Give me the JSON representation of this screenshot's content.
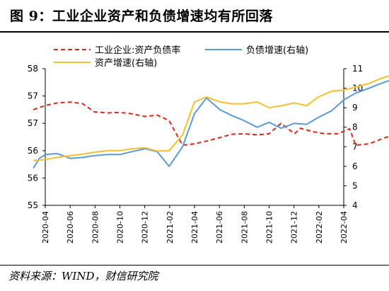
{
  "header": {
    "title": "图 9：工业企业资产和负债增速均有所回落"
  },
  "footer": {
    "source": "资料来源：WIND，财信研究院"
  },
  "chart_data": {
    "type": "line",
    "title": "图 9：工业企业资产和负债增速均有所回落",
    "x_ticks": [
      "2020-04",
      "2020-06",
      "2020-08",
      "2020-10",
      "2020-12",
      "2021-02",
      "2021-04",
      "2021-06",
      "2021-08",
      "2021-10",
      "2021-12",
      "2022-02",
      "2022-04"
    ],
    "x_start": 2020.25,
    "x_end": 2022.25,
    "y_left": {
      "ticks": [
        "55",
        "56",
        "56",
        "57",
        "57",
        "58"
      ],
      "range": [
        0,
        5
      ]
    },
    "y_right": {
      "ticks": [
        4,
        5,
        6,
        7,
        8,
        9,
        10,
        11
      ],
      "range": [
        4,
        11
      ]
    },
    "legend": {
      "placement": "top",
      "entries": [
        "工业企业:资产负债率",
        "负债增速(右轴)",
        "资产增速(右轴)"
      ]
    },
    "series": [
      {
        "name": "工业企业:资产负债率",
        "axis": "left",
        "color": "#e0261c",
        "dash": true,
        "points": [
          [
            2020.17,
            3.5
          ],
          [
            2020.25,
            3.65
          ],
          [
            2020.33,
            3.75
          ],
          [
            2020.42,
            3.78
          ],
          [
            2020.5,
            3.72
          ],
          [
            2020.58,
            3.42
          ],
          [
            2020.67,
            3.38
          ],
          [
            2020.75,
            3.4
          ],
          [
            2020.83,
            3.35
          ],
          [
            2020.92,
            3.25
          ],
          [
            2021.0,
            3.3
          ],
          [
            2021.08,
            3.1
          ],
          [
            2021.17,
            2.2
          ],
          [
            2021.25,
            2.25
          ],
          [
            2021.33,
            2.35
          ],
          [
            2021.42,
            2.48
          ],
          [
            2021.5,
            2.6
          ],
          [
            2021.58,
            2.62
          ],
          [
            2021.67,
            2.58
          ],
          [
            2021.75,
            2.62
          ],
          [
            2021.83,
            3.0
          ],
          [
            2021.92,
            2.62
          ],
          [
            2021.96,
            2.82
          ],
          [
            2022.04,
            2.7
          ],
          [
            2022.12,
            2.62
          ],
          [
            2022.21,
            2.62
          ],
          [
            2022.29,
            2.8
          ],
          [
            2022.33,
            2.2
          ],
          [
            2022.42,
            2.25
          ],
          [
            2022.5,
            2.42
          ],
          [
            2022.58,
            2.58
          ],
          [
            2022.67,
            3.02
          ],
          [
            2022.75,
            2.98
          ]
        ]
      },
      {
        "name": "负债增速(右轴)",
        "axis": "right",
        "color": "#5b9bd5",
        "dash": false,
        "points": [
          [
            2020.17,
            5.9
          ],
          [
            2020.21,
            6.4
          ],
          [
            2020.25,
            6.6
          ],
          [
            2020.33,
            6.65
          ],
          [
            2020.42,
            6.4
          ],
          [
            2020.5,
            6.45
          ],
          [
            2020.58,
            6.55
          ],
          [
            2020.67,
            6.6
          ],
          [
            2020.75,
            6.6
          ],
          [
            2020.83,
            6.75
          ],
          [
            2020.92,
            6.9
          ],
          [
            2021.0,
            6.75
          ],
          [
            2021.08,
            6.0
          ],
          [
            2021.17,
            7.0
          ],
          [
            2021.25,
            8.7
          ],
          [
            2021.33,
            9.5
          ],
          [
            2021.42,
            8.9
          ],
          [
            2021.5,
            8.6
          ],
          [
            2021.58,
            8.35
          ],
          [
            2021.67,
            8.0
          ],
          [
            2021.75,
            8.25
          ],
          [
            2021.83,
            7.95
          ],
          [
            2021.92,
            8.2
          ],
          [
            2022.0,
            8.15
          ],
          [
            2022.08,
            8.5
          ],
          [
            2022.17,
            8.85
          ],
          [
            2022.25,
            9.4
          ],
          [
            2022.33,
            9.75
          ],
          [
            2022.42,
            10.0
          ],
          [
            2022.5,
            10.25
          ],
          [
            2022.58,
            10.45
          ],
          [
            2022.67,
            10.55
          ],
          [
            2022.75,
            10.4
          ]
        ]
      },
      {
        "name": "资产增速(右轴)",
        "axis": "right",
        "color": "#f5c02c",
        "dash": false,
        "points": [
          [
            2020.17,
            6.3
          ],
          [
            2020.25,
            6.35
          ],
          [
            2020.33,
            6.45
          ],
          [
            2020.42,
            6.55
          ],
          [
            2020.5,
            6.62
          ],
          [
            2020.58,
            6.72
          ],
          [
            2020.67,
            6.8
          ],
          [
            2020.75,
            6.8
          ],
          [
            2020.83,
            6.9
          ],
          [
            2020.92,
            6.95
          ],
          [
            2021.0,
            6.78
          ],
          [
            2021.08,
            6.8
          ],
          [
            2021.17,
            7.6
          ],
          [
            2021.25,
            9.3
          ],
          [
            2021.33,
            9.55
          ],
          [
            2021.42,
            9.3
          ],
          [
            2021.5,
            9.2
          ],
          [
            2021.58,
            9.2
          ],
          [
            2021.67,
            9.3
          ],
          [
            2021.75,
            9.0
          ],
          [
            2021.83,
            9.1
          ],
          [
            2021.92,
            9.25
          ],
          [
            2022.0,
            9.1
          ],
          [
            2022.08,
            9.55
          ],
          [
            2022.17,
            9.85
          ],
          [
            2022.25,
            9.9
          ],
          [
            2022.33,
            10.05
          ],
          [
            2022.42,
            10.25
          ],
          [
            2022.5,
            10.5
          ],
          [
            2022.58,
            10.7
          ],
          [
            2022.67,
            10.6
          ],
          [
            2022.75,
            10.4
          ]
        ]
      }
    ]
  }
}
